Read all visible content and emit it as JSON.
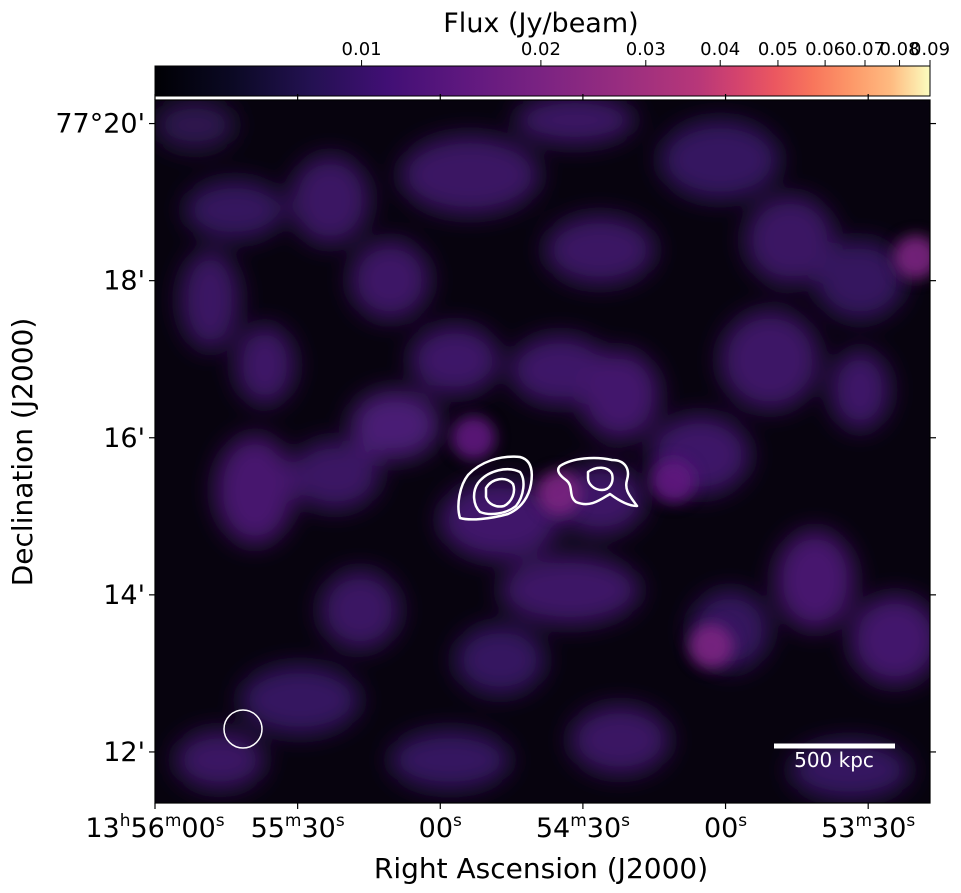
{
  "chart_data": {
    "type": "heatmap",
    "title": "",
    "colorbar": {
      "label": "Flux (Jy/beam)",
      "colormap": "magma",
      "scale": "log",
      "range": [
        0.0045,
        0.09
      ],
      "ticks": [
        {
          "value": 0.01,
          "label": "0.01"
        },
        {
          "value": 0.02,
          "label": "0.02"
        },
        {
          "value": 0.03,
          "label": "0.03"
        },
        {
          "value": 0.04,
          "label": "0.04"
        },
        {
          "value": 0.05,
          "label": "0.05"
        },
        {
          "value": 0.06,
          "label": "0.06"
        },
        {
          "value": 0.07,
          "label": "0.07"
        },
        {
          "value": 0.08,
          "label": "0.08"
        },
        {
          "value": 0.09,
          "label": "0.09"
        }
      ]
    },
    "xlabel": "Right Ascension (J2000)",
    "ylabel": "Declination (J2000)",
    "x_axis": {
      "units": "seconds of RA",
      "range": [
        13,
        56,
        0,
        13,
        53,
        17
      ],
      "range_seconds": [
        50160,
        49997
      ],
      "ticks": [
        {
          "value": 50160,
          "label_parts": [
            "13",
            "h",
            "56",
            "m",
            "00",
            "s"
          ]
        },
        {
          "value": 50130,
          "label_parts": [
            "55",
            "m",
            "30",
            "s"
          ]
        },
        {
          "value": 50100,
          "label_parts": [
            "00",
            "s"
          ]
        },
        {
          "value": 50070,
          "label_parts": [
            "54",
            "m",
            "30",
            "s"
          ]
        },
        {
          "value": 50040,
          "label_parts": [
            "00",
            "s"
          ]
        },
        {
          "value": 50010,
          "label_parts": [
            "53",
            "m",
            "30",
            "s"
          ]
        }
      ]
    },
    "y_axis": {
      "units": "arcmin above 77°",
      "range": [
        11.35,
        20.3
      ],
      "ticks": [
        {
          "value": 20,
          "label": "77°20'"
        },
        {
          "value": 18,
          "label": "18'"
        },
        {
          "value": 16,
          "label": "16'"
        },
        {
          "value": 14,
          "label": "14'"
        },
        {
          "value": 12,
          "label": "12'"
        }
      ]
    },
    "bright_sources": [
      {
        "ra_s": 50075,
        "dec": 15.3,
        "flux": 0.012
      },
      {
        "ra_s": 50051,
        "dec": 15.45,
        "flux": 0.011
      },
      {
        "ra_s": 50043,
        "dec": 13.35,
        "flux": 0.012
      },
      {
        "ra_s": 50000,
        "dec": 18.3,
        "flux": 0.012
      },
      {
        "ra_s": 50093,
        "dec": 16.0,
        "flux": 0.01
      }
    ],
    "contours": {
      "color": "#ffffff",
      "sources": [
        {
          "name": "east",
          "levels": 3
        },
        {
          "name": "west",
          "levels": 2
        }
      ]
    },
    "beam": {
      "shape": "circle",
      "color": "#ffffff",
      "position": "bottom-left"
    },
    "scalebar": {
      "label": "500 kpc",
      "color": "#ffffff",
      "position": "bottom-right"
    }
  }
}
